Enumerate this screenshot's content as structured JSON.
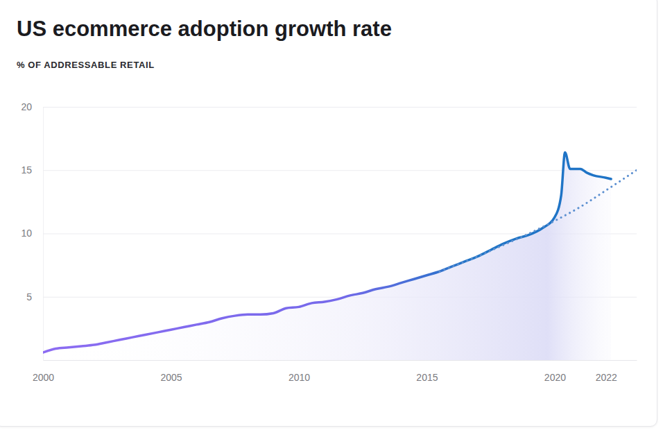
{
  "chart_data": {
    "type": "line",
    "title": "US ecommerce adoption growth rate",
    "subtitle": "% OF ADDRESSABLE RETAIL",
    "xlim": [
      2000,
      2023.2
    ],
    "xticks": [
      2000,
      2005,
      2010,
      2015,
      2020,
      2022
    ],
    "ylim": [
      0,
      20
    ],
    "yticks": [
      5,
      10,
      15,
      20
    ],
    "grid": true,
    "series": [
      {
        "color": "#1f74c6",
        "line_style": "solid",
        "x": [
          2000,
          2000.5,
          2001,
          2001.5,
          2002,
          2002.5,
          2003,
          2003.5,
          2004,
          2004.5,
          2005,
          2005.5,
          2006,
          2006.5,
          2007,
          2007.5,
          2008,
          2008.5,
          2009,
          2009.5,
          2010,
          2010.5,
          2011,
          2011.5,
          2012,
          2012.5,
          2013,
          2013.5,
          2014,
          2014.5,
          2015,
          2015.5,
          2016,
          2016.5,
          2017,
          2017.5,
          2018,
          2018.5,
          2019,
          2019.5,
          2020,
          2020.25,
          2020.4,
          2020.6,
          2021,
          2021.25,
          2021.5,
          2022,
          2022.2
        ],
        "values": [
          0.6,
          0.9,
          1.0,
          1.1,
          1.2,
          1.4,
          1.6,
          1.8,
          2.0,
          2.2,
          2.4,
          2.6,
          2.8,
          3.0,
          3.3,
          3.5,
          3.6,
          3.6,
          3.7,
          4.1,
          4.2,
          4.5,
          4.6,
          4.8,
          5.1,
          5.3,
          5.6,
          5.8,
          6.1,
          6.4,
          6.7,
          7.0,
          7.4,
          7.8,
          8.2,
          8.7,
          9.2,
          9.6,
          9.9,
          10.4,
          11.3,
          13.0,
          16.4,
          15.1,
          15.1,
          14.8,
          14.6,
          14.4,
          14.3
        ]
      },
      {
        "color": "#5b8fd0",
        "line_style": "dotted",
        "x": [
          2015.5,
          2017,
          2018,
          2019,
          2020,
          2021,
          2022,
          2023.2
        ],
        "values": [
          7.0,
          8.2,
          9.1,
          10.0,
          11.0,
          12.1,
          13.4,
          15.0
        ]
      }
    ]
  }
}
